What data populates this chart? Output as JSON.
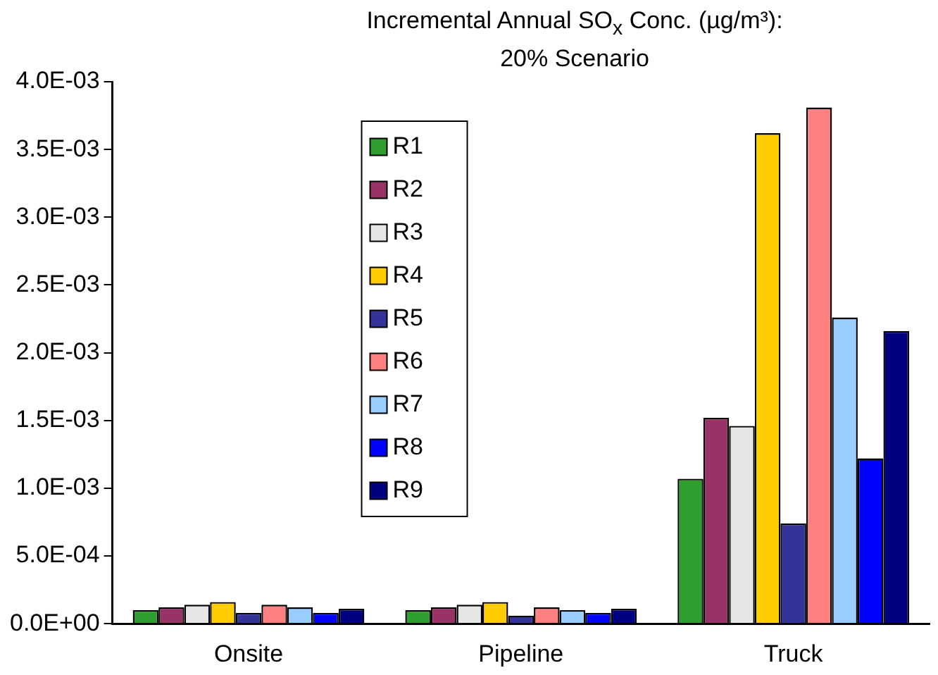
{
  "chart_data": {
    "type": "bar",
    "title": "Incremental Annual SO$_{x}$ Conc. (µg/m³):",
    "subtitle": "20% Scenario",
    "categories": [
      "Onsite",
      "Pipeline",
      "Truck"
    ],
    "series": [
      {
        "name": "R1",
        "color": "#2e9e2e",
        "values": [
          0.0001,
          0.0001,
          0.00107
        ]
      },
      {
        "name": "R2",
        "color": "#993366",
        "values": [
          0.00012,
          0.00012,
          0.00152
        ]
      },
      {
        "name": "R3",
        "color": "#e6e6e6",
        "values": [
          0.00014,
          0.00014,
          0.00146
        ]
      },
      {
        "name": "R4",
        "color": "#ffcc00",
        "values": [
          0.00016,
          0.00016,
          0.00362
        ]
      },
      {
        "name": "R5",
        "color": "#333399",
        "values": [
          8e-05,
          6e-05,
          0.00074
        ]
      },
      {
        "name": "R6",
        "color": "#ff8080",
        "values": [
          0.00014,
          0.00012,
          0.00381
        ]
      },
      {
        "name": "R7",
        "color": "#99ccff",
        "values": [
          0.00012,
          0.0001,
          0.00226
        ]
      },
      {
        "name": "R8",
        "color": "#0000ff",
        "values": [
          8e-05,
          8e-05,
          0.00122
        ]
      },
      {
        "name": "R9",
        "color": "#000080",
        "values": [
          0.00011,
          0.00011,
          0.00216
        ]
      }
    ],
    "ylim": [
      0,
      0.004
    ],
    "yticks": [
      {
        "value": 0,
        "label": "0.0E+00"
      },
      {
        "value": 0.0005,
        "label": "5.0E-04"
      },
      {
        "value": 0.001,
        "label": "1.0E-03"
      },
      {
        "value": 0.0015,
        "label": "1.5E-03"
      },
      {
        "value": 0.002,
        "label": "2.0E-03"
      },
      {
        "value": 0.0025,
        "label": "2.5E-03"
      },
      {
        "value": 0.003,
        "label": "3.0E-03"
      },
      {
        "value": 0.0035,
        "label": "3.5E-03"
      },
      {
        "value": 0.004,
        "label": "4.0E-03"
      }
    ],
    "grid": false,
    "legend": "top left"
  }
}
